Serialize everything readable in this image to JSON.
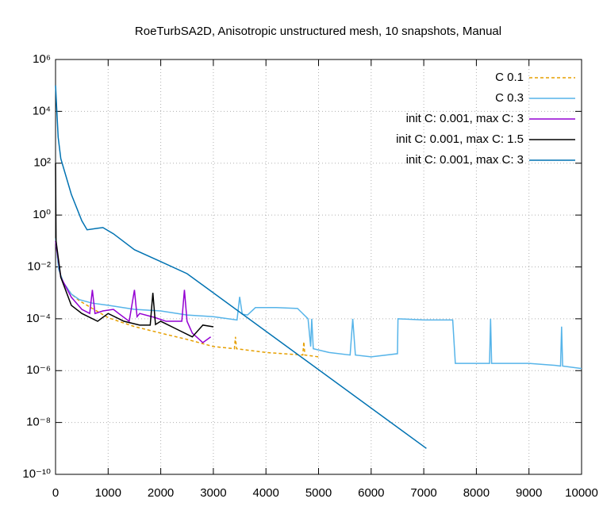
{
  "chart_data": {
    "type": "line",
    "title": "RoeTurbSA2D, Anisotropic unstructured mesh, 10 snapshots, Manual",
    "yscale": "log",
    "grid": true,
    "legend": "top-right",
    "xlim": [
      0,
      10000
    ],
    "xticks": [
      0,
      1000,
      2000,
      3000,
      4000,
      5000,
      6000,
      7000,
      8000,
      9000,
      10000
    ],
    "ylim": [
      1e-10,
      1000000.0
    ],
    "yticks": [
      {
        "value": 1e-10,
        "label": "10⁻¹⁰"
      },
      {
        "value": 1e-08,
        "label": "10⁻⁸"
      },
      {
        "value": 1e-06,
        "label": "10⁻⁶"
      },
      {
        "value": 0.0001,
        "label": "10⁻⁴"
      },
      {
        "value": 0.01,
        "label": "10⁻²"
      },
      {
        "value": 1,
        "label": "10⁰"
      },
      {
        "value": 100,
        "label": "10²"
      },
      {
        "value": 10000,
        "label": "10⁴"
      },
      {
        "value": 1000000,
        "label": "10⁶"
      }
    ],
    "series": [
      {
        "name": "C 0.1",
        "color": "#e69f00",
        "dashed": true,
        "x": [
          0,
          60,
          150,
          300,
          450,
          700,
          1000,
          1500,
          2000,
          2500,
          3000,
          3400,
          3420,
          3440,
          4000,
          4700,
          4720,
          4740,
          5000
        ],
        "values": [
          0.13,
          0.008,
          0.0025,
          0.0009,
          0.0005,
          0.00025,
          0.00011,
          5e-05,
          2.8e-05,
          1.6e-05,
          8.5e-06,
          7e-06,
          2e-05,
          7e-06,
          5e-06,
          4e-06,
          1.3e-05,
          4e-06,
          3.4e-06
        ]
      },
      {
        "name": "C 0.3",
        "color": "#56b4e9",
        "dashed": false,
        "x": [
          0,
          60,
          150,
          300,
          450,
          700,
          1000,
          1500,
          2000,
          2500,
          3000,
          3450,
          3500,
          3550,
          3650,
          3800,
          4200,
          4600,
          4800,
          4850,
          4870,
          4900,
          5200,
          5600,
          5650,
          5700,
          6000,
          6500,
          6510,
          7000,
          7550,
          7600,
          8250,
          8270,
          8290,
          8500,
          9000,
          9500,
          9600,
          9620,
          9640,
          10000
        ],
        "values": [
          0.13,
          0.008,
          0.0025,
          0.0009,
          0.00055,
          0.0004,
          0.00033,
          0.00023,
          0.0002,
          0.00014,
          0.00012,
          9e-05,
          0.0007,
          0.00015,
          0.00014,
          0.00027,
          0.00027,
          0.00025,
          0.0001,
          8.5e-06,
          0.0001,
          7e-06,
          5e-06,
          4e-06,
          0.0001,
          4e-06,
          3.4e-06,
          4.5e-06,
          0.0001,
          9e-05,
          9e-05,
          1.9e-06,
          1.9e-06,
          0.0001,
          1.9e-06,
          1.9e-06,
          1.9e-06,
          1.6e-06,
          1.5e-06,
          5e-05,
          1.5e-06,
          1.2e-06
        ]
      },
      {
        "name": "init C: 0.001, max C: 3",
        "color": "#9400d3",
        "dashed": false,
        "x": [
          0,
          100,
          300,
          500,
          650,
          700,
          750,
          900,
          1100,
          1200,
          1400,
          1500,
          1550,
          1600,
          1900,
          2100,
          2400,
          2450,
          2500,
          2600,
          2800,
          2950
        ],
        "values": [
          0.1,
          0.004,
          0.00068,
          0.00023,
          0.00016,
          0.0013,
          0.00016,
          0.0002,
          0.00023,
          0.00016,
          8e-05,
          0.0013,
          0.00012,
          0.00016,
          0.00011,
          8e-05,
          8e-05,
          0.0013,
          8e-05,
          2.8e-05,
          1.2e-05,
          2e-05
        ]
      },
      {
        "name": "init C: 0.001, max C: 1.5",
        "color": "#000000",
        "dashed": false,
        "x": [
          0,
          10,
          100,
          300,
          500,
          800,
          1000,
          1300,
          1600,
          1800,
          1850,
          1900,
          2000,
          2300,
          2600,
          2800,
          3000
        ],
        "values": [
          100,
          0.1,
          0.004,
          0.00033,
          0.00016,
          8e-05,
          0.00016,
          8e-05,
          5.7e-05,
          5.7e-05,
          0.001,
          6e-05,
          8e-05,
          4e-05,
          2e-05,
          5.7e-05,
          4.9e-05
        ]
      },
      {
        "name": "init C: 0.001, max C: 3",
        "color": "#0072b2",
        "dashed": false,
        "x": [
          0,
          50,
          100,
          300,
          500,
          600,
          800,
          900,
          1100,
          1500,
          2000,
          2500,
          7050
        ],
        "values": [
          100000.0,
          1000.0,
          150,
          6.3,
          0.6,
          0.27,
          0.31,
          0.33,
          0.19,
          0.046,
          0.016,
          0.0055,
          1e-09
        ]
      }
    ]
  }
}
